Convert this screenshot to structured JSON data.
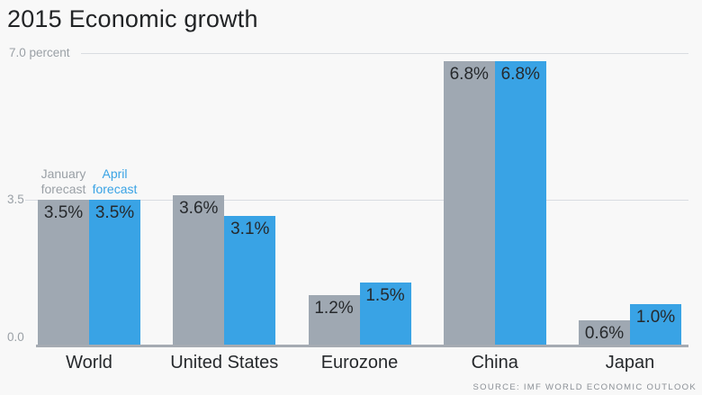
{
  "title": "2015 Economic growth",
  "source": "SOURCE: IMF WORLD ECONOMIC OUTLOOK",
  "colors": {
    "january_series": "#9fa8b2",
    "april_series": "#39a3e5",
    "january_legend_text": "#9aa0a6",
    "april_legend_text": "#39a3e5"
  },
  "chart_data": {
    "type": "bar",
    "title": "2015 Economic growth",
    "categories": [
      "World",
      "United States",
      "Eurozone",
      "China",
      "Japan"
    ],
    "series": [
      {
        "name": "January forecast",
        "legend_lines": "January\nforecast",
        "color": "#9fa8b2",
        "legend_text_color": "#9aa0a6",
        "values": [
          3.5,
          3.6,
          1.2,
          6.8,
          0.6
        ],
        "labels": [
          "3.5%",
          "3.6%",
          "1.2%",
          "6.8%",
          "0.6%"
        ]
      },
      {
        "name": "April forecast",
        "legend_lines": "April\nforecast",
        "color": "#39a3e5",
        "legend_text_color": "#39a3e5",
        "values": [
          3.5,
          3.1,
          1.5,
          6.8,
          1.0
        ],
        "labels": [
          "3.5%",
          "3.1%",
          "1.5%",
          "6.8%",
          "1.0%"
        ]
      }
    ],
    "ylabel": "percent",
    "ylim": [
      0,
      7
    ],
    "yticks": [
      {
        "value": 7.0,
        "label": "7.0 percent"
      },
      {
        "value": 3.5,
        "label": "3.5"
      },
      {
        "value": 0.0,
        "label": "0.0"
      }
    ],
    "grid": true,
    "legend_position": "above-first-group",
    "source": "SOURCE: IMF WORLD ECONOMIC OUTLOOK"
  }
}
